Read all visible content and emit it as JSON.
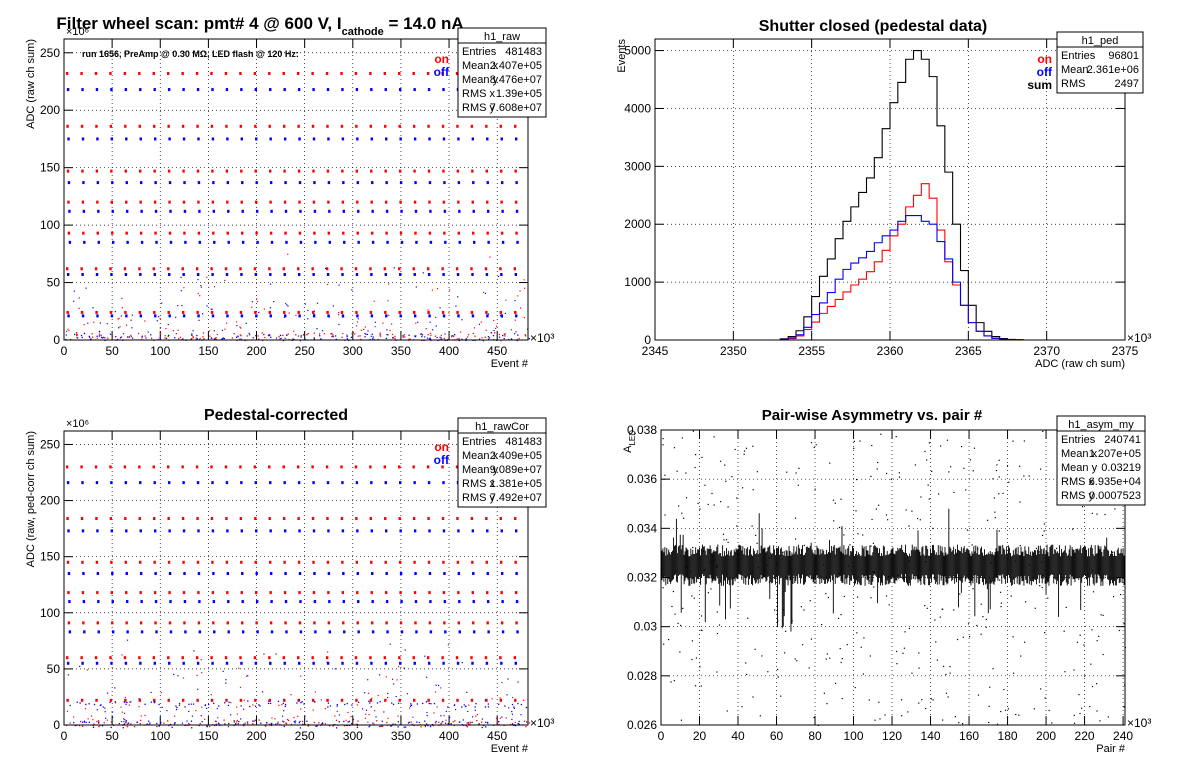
{
  "chart_data": [
    {
      "type": "scatter",
      "title": "Filter wheel scan: pmt#   4 @   600 V, I",
      "title_subscript": "cathode",
      "title_suffix": " = 14.0 nA",
      "annotation": "run 1656, PreAmp @ 0.30 MΩ, LED flash @  120 Hz:",
      "xlabel": "Event #",
      "ylabel": "ADC (raw ch sum)",
      "x_exponent": "×10³",
      "y_exponent": "×10⁶",
      "xlim": [
        0,
        482
      ],
      "ylim": [
        0,
        262
      ],
      "xticks": [
        0,
        50,
        100,
        150,
        200,
        250,
        300,
        350,
        400,
        450
      ],
      "yticks": [
        0,
        50,
        100,
        150,
        200,
        250
      ],
      "grid": true,
      "legend": [
        "on",
        "off"
      ],
      "series": [
        {
          "name": "on",
          "color": "#ff0000",
          "levels": [
            232,
            186,
            147,
            120,
            93,
            62,
            24,
            4
          ]
        },
        {
          "name": "off",
          "color": "#0000ff",
          "levels": [
            218,
            175,
            137,
            112,
            85,
            57,
            21,
            3
          ]
        }
      ],
      "stats": {
        "name": "h1_raw",
        "rows": [
          [
            "Entries",
            "481483"
          ],
          [
            "Mean x",
            "2.407e+05"
          ],
          [
            "Mean y",
            "8.476e+07"
          ],
          [
            "RMS x",
            "1.39e+05"
          ],
          [
            "RMS y",
            "7.608e+07"
          ]
        ]
      }
    },
    {
      "type": "histogram",
      "title": "Shutter closed (pedestal data)",
      "xlabel": "ADC (raw ch sum)",
      "ylabel": "Events",
      "x_exponent": "×10³",
      "xlim": [
        2345,
        2375
      ],
      "ylim": [
        0,
        5200
      ],
      "xticks": [
        2345,
        2350,
        2355,
        2360,
        2365,
        2370,
        2375
      ],
      "yticks": [
        0,
        1000,
        2000,
        3000,
        4000,
        5000
      ],
      "grid": true,
      "legend": [
        "on",
        "off",
        "sum"
      ],
      "bin_width": 0.5,
      "x": [
        2353.0,
        2353.5,
        2354.0,
        2354.5,
        2355.0,
        2355.5,
        2356.0,
        2356.5,
        2357.0,
        2357.5,
        2358.0,
        2358.5,
        2359.0,
        2359.5,
        2360.0,
        2360.5,
        2361.0,
        2361.5,
        2362.0,
        2362.5,
        2363.0,
        2363.5,
        2364.0,
        2364.5,
        2365.0,
        2365.5,
        2366.0,
        2366.5,
        2367.0,
        2367.5,
        2368.0
      ],
      "series": [
        {
          "name": "sum",
          "color": "#000000",
          "values": [
            20,
            60,
            160,
            400,
            750,
            1100,
            1400,
            1750,
            2050,
            2300,
            2550,
            2800,
            3150,
            3650,
            4100,
            4450,
            4850,
            5000,
            4850,
            4550,
            3700,
            2900,
            2000,
            1200,
            600,
            300,
            150,
            60,
            25,
            10,
            5
          ]
        },
        {
          "name": "on",
          "color": "#ff0000",
          "values": [
            10,
            25,
            70,
            180,
            310,
            460,
            580,
            700,
            830,
            950,
            1050,
            1180,
            1350,
            1550,
            1800,
            2000,
            2300,
            2500,
            2700,
            2450,
            1900,
            1350,
            950,
            600,
            300,
            150,
            70,
            30,
            12,
            5,
            2
          ]
        },
        {
          "name": "off",
          "color": "#0000ff",
          "values": [
            10,
            35,
            90,
            220,
            440,
            640,
            820,
            1050,
            1220,
            1330,
            1420,
            1530,
            1680,
            1800,
            1900,
            2050,
            2150,
            2150,
            2050,
            2000,
            1700,
            1400,
            1000,
            600,
            300,
            150,
            70,
            30,
            12,
            5,
            2
          ]
        }
      ],
      "stats": {
        "name": "h1_ped",
        "rows": [
          [
            "Entries",
            "96801"
          ],
          [
            "Mean",
            "2.361e+06"
          ],
          [
            "RMS",
            "2497"
          ]
        ]
      }
    },
    {
      "type": "scatter",
      "title": "Pedestal-corrected",
      "xlabel": "Event #",
      "ylabel": "ADC (raw, ped-corr ch sum)",
      "x_exponent": "×10³",
      "y_exponent": "×10⁶",
      "xlim": [
        0,
        482
      ],
      "ylim": [
        0,
        262
      ],
      "xticks": [
        0,
        50,
        100,
        150,
        200,
        250,
        300,
        350,
        400,
        450
      ],
      "yticks": [
        0,
        50,
        100,
        150,
        200,
        250
      ],
      "grid": true,
      "legend": [
        "on",
        "off"
      ],
      "series": [
        {
          "name": "on",
          "color": "#ff0000",
          "levels": [
            230,
            184,
            145,
            118,
            91,
            60,
            22,
            2
          ]
        },
        {
          "name": "off",
          "color": "#0000ff",
          "levels": [
            216,
            173,
            135,
            110,
            83,
            55,
            19,
            1
          ]
        }
      ],
      "stats": {
        "name": "h1_rawCor",
        "rows": [
          [
            "Entries",
            "481483"
          ],
          [
            "Mean x",
            "2.409e+05"
          ],
          [
            "Mean y",
            "9.089e+07"
          ],
          [
            "RMS x",
            "1.381e+05"
          ],
          [
            "RMS y",
            "7.492e+07"
          ]
        ]
      }
    },
    {
      "type": "scatter",
      "title": "Pair-wise Asymmetry vs. pair #",
      "xlabel": "Pair #",
      "ylabel": "A",
      "ylabel_subscript": "LED",
      "x_exponent": "×10³",
      "xlim": [
        0,
        241
      ],
      "ylim": [
        0.026,
        0.038
      ],
      "xticks": [
        0,
        20,
        40,
        60,
        80,
        100,
        120,
        140,
        160,
        180,
        200,
        220,
        240
      ],
      "yticks": [
        0.026,
        0.028,
        0.03,
        0.032,
        0.034,
        0.036,
        0.038
      ],
      "grid": true,
      "band": {
        "center": 0.0325,
        "half_width": 0.0006
      },
      "series": [
        {
          "name": "",
          "color": "#000000"
        }
      ],
      "stats": {
        "name": "h1_asym_my",
        "rows": [
          [
            "Entries",
            "240741"
          ],
          [
            "Mean x",
            "1.207e+05"
          ],
          [
            "Mean y",
            "0.03219"
          ],
          [
            "RMS x",
            "6.935e+04"
          ],
          [
            "RMS y",
            "0.0007523"
          ]
        ]
      }
    }
  ]
}
